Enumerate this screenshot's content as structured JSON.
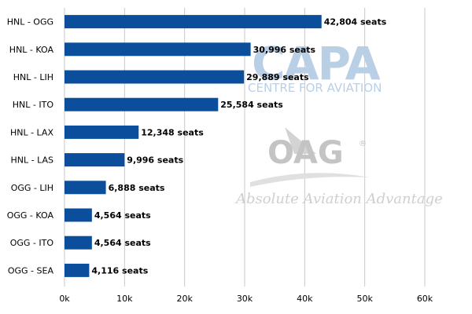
{
  "chart_data": {
    "type": "bar",
    "orientation": "horizontal",
    "categories": [
      "HNL - OGG",
      "HNL - KOA",
      "HNL - LIH",
      "HNL - ITO",
      "HNL - LAX",
      "HNL - LAS",
      "OGG - LIH",
      "OGG - KOA",
      "OGG - ITO",
      "OGG - SEA"
    ],
    "values": [
      42804,
      30996,
      29889,
      25584,
      12348,
      9996,
      6888,
      4564,
      4564,
      4116
    ],
    "data_labels": [
      "42,804 seats",
      "30,996 seats",
      "29,889 seats",
      "25,584 seats",
      "12,348 seats",
      "9,996 seats",
      "6,888 seats",
      "4,564 seats",
      "4,564 seats",
      "4,116 seats"
    ],
    "x_ticks": [
      0,
      10000,
      20000,
      30000,
      40000,
      50000,
      60000
    ],
    "x_tick_labels": [
      "0k",
      "10k",
      "20k",
      "30k",
      "40k",
      "50k",
      "60k"
    ],
    "xlim": [
      0,
      60000
    ],
    "grid": "vertical",
    "bar_color": "#0b4f9c",
    "title": "",
    "xlabel": "",
    "ylabel": ""
  },
  "watermarks": {
    "capa_logo": "CAPA",
    "capa_subtitle": "CENTRE FOR AVIATION",
    "oag_logo": "OAG",
    "oag_registered": "®",
    "oag_tagline": "Absolute Aviation Advantage"
  }
}
